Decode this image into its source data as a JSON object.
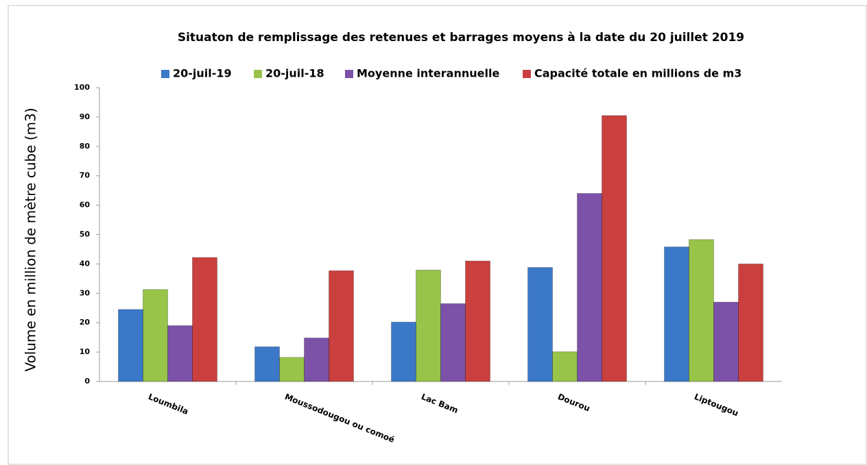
{
  "chart_data": {
    "type": "bar",
    "title": "Situaton de remplissage des retenues et barrages moyens à la date du 20 juillet 2019",
    "y_label": "Volume en million de mètre cube (m3)",
    "categories": [
      "Loumbila",
      "Moussodougou ou comoé",
      "Lac Bam",
      "Dourou",
      "Liptougou"
    ],
    "series": [
      {
        "name": "20-juil-19",
        "color": "#3b78c8",
        "values": [
          24.5,
          11.8,
          20.2,
          38.8,
          45.8
        ]
      },
      {
        "name": "20-juil-18",
        "color": "#98c44a",
        "values": [
          31.3,
          8.2,
          37.9,
          10.1,
          48.3
        ]
      },
      {
        "name": "Moyenne interannuelle",
        "color": "#7b52a8",
        "values": [
          19,
          14.8,
          26.5,
          64,
          27
        ]
      },
      {
        "name": "Capacité totale en millions de m3",
        "color": "#c9403e",
        "values": [
          42.2,
          37.7,
          41,
          90.5,
          40
        ]
      }
    ],
    "ylim": [
      0,
      100
    ],
    "yticks": [
      0,
      10,
      20,
      30,
      40,
      50,
      60,
      70,
      80,
      90,
      100
    ],
    "grid": false
  }
}
